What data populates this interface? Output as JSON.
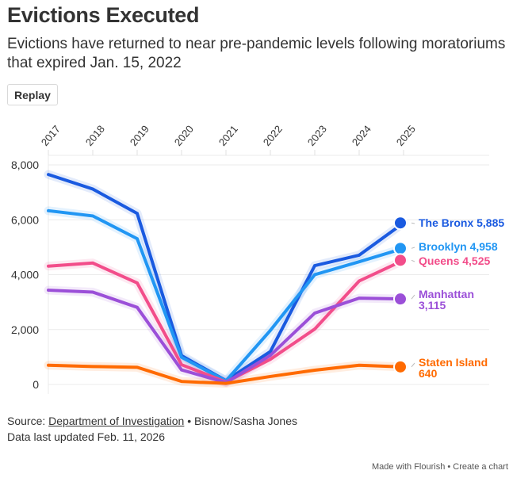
{
  "header": {
    "title": "Evictions Executed",
    "subtitle": "Evictions have returned to near pre-pandemic levels following moratoriums that expired Jan. 15, 2022",
    "replay_label": "Replay"
  },
  "chart_data": {
    "type": "line",
    "title": "Evictions Executed",
    "xlabel": "",
    "ylabel": "",
    "x": [
      "2017",
      "2018",
      "2019",
      "2020",
      "2021",
      "2022",
      "2023",
      "2024",
      "2025"
    ],
    "y_ticks": [
      "0",
      "2,000",
      "4,000",
      "6,000",
      "8,000"
    ],
    "y_tick_values": [
      0,
      2000,
      4000,
      6000,
      8000
    ],
    "ylim": [
      0,
      8000
    ],
    "grid": true,
    "x_axis_position": "top",
    "legend": "direct-labels-right",
    "series": [
      {
        "name": "The Bronx",
        "color": "#1a5ae0",
        "end_label": "The Bronx 5,885",
        "values": [
          7650,
          7120,
          6230,
          1050,
          140,
          1200,
          4330,
          4710,
          5885
        ]
      },
      {
        "name": "Brooklyn",
        "color": "#2196f3",
        "end_label": "Brooklyn 4,958",
        "values": [
          6330,
          6140,
          5310,
          990,
          130,
          1970,
          4000,
          4470,
          4958
        ]
      },
      {
        "name": "Queens",
        "color": "#f24d8a",
        "end_label": "Queens 4,525",
        "values": [
          4310,
          4425,
          3700,
          720,
          90,
          915,
          2020,
          3770,
          4525
        ]
      },
      {
        "name": "Manhattan",
        "color": "#9b4fd8",
        "end_label_lines": [
          "Manhattan",
          "3,115"
        ],
        "values": [
          3435,
          3365,
          2810,
          530,
          70,
          1060,
          2600,
          3145,
          3115
        ]
      },
      {
        "name": "Staten Island",
        "color": "#ff6a00",
        "end_label_lines": [
          "Staten Island",
          "640"
        ],
        "values": [
          700,
          655,
          625,
          110,
          40,
          290,
          520,
          700,
          640
        ]
      }
    ]
  },
  "footer": {
    "source_prefix": "Source: ",
    "source_link": "Department of Investigation",
    "source_suffix": " • Bisnow/Sasha Jones",
    "updated": "Data last updated Feb. 11, 2026",
    "credit_flourish": "Made with Flourish",
    "credit_sep": " • ",
    "credit_create": "Create a chart"
  }
}
